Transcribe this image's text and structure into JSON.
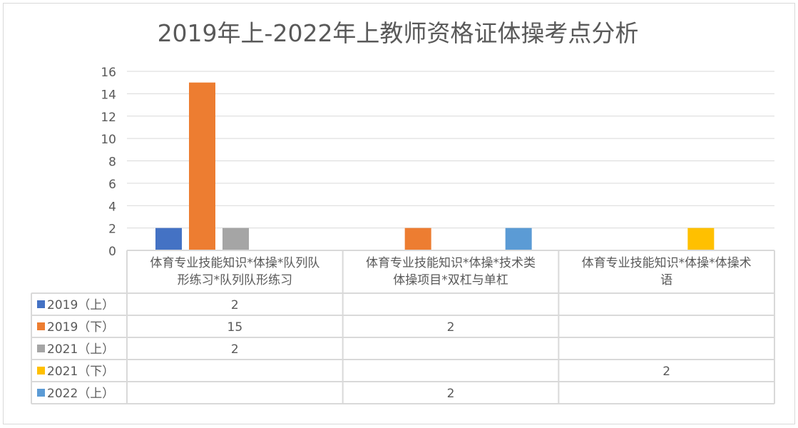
{
  "chart_data": {
    "type": "bar",
    "title": "2019年上-2022年上教师资格证体操考点分析",
    "categories": [
      [
        "体育专业技能知识*体操*队列队",
        "形练习*队列队形练习"
      ],
      [
        "体育专业技能知识*体操*技术类",
        "体操项目*双杠与单杠"
      ],
      [
        "体育专业技能知识*体操*体操术",
        "语"
      ]
    ],
    "series": [
      {
        "name": "2019（上）",
        "color": "#4472c4",
        "values": [
          2,
          null,
          null
        ]
      },
      {
        "name": "2019（下）",
        "color": "#ed7d31",
        "values": [
          15,
          2,
          null
        ]
      },
      {
        "name": "2021（上）",
        "color": "#a5a5a5",
        "values": [
          2,
          null,
          null
        ]
      },
      {
        "name": "2021（下）",
        "color": "#ffc000",
        "values": [
          null,
          null,
          2
        ]
      },
      {
        "name": "2022（上）",
        "color": "#5b9bd5",
        "values": [
          null,
          2,
          null
        ]
      }
    ],
    "ylim": [
      0,
      16
    ],
    "yticks": [
      0,
      2,
      4,
      6,
      8,
      10,
      12,
      14,
      16
    ],
    "grid": true,
    "legend": "data-table"
  }
}
